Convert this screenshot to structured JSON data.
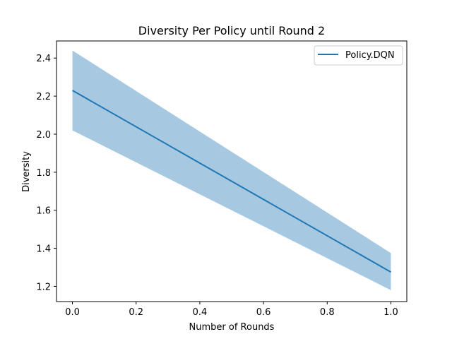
{
  "chart_data": {
    "type": "line",
    "title": "Diversity Per Policy until Round 2",
    "xlabel": "Number of Rounds",
    "ylabel": "Diversity",
    "xlim": [
      -0.05,
      1.05
    ],
    "ylim": [
      1.12,
      2.49
    ],
    "xticks": [
      0.0,
      0.2,
      0.4,
      0.6,
      0.8,
      1.0
    ],
    "xtick_labels": [
      "0.0",
      "0.2",
      "0.4",
      "0.6",
      "0.8",
      "1.0"
    ],
    "yticks": [
      1.2,
      1.4,
      1.6,
      1.8,
      2.0,
      2.2,
      2.4
    ],
    "ytick_labels": [
      "1.2",
      "1.4",
      "1.6",
      "1.8",
      "2.0",
      "2.2",
      "2.4"
    ],
    "grid": false,
    "legend_position": "top-right",
    "series": [
      {
        "name": "Policy.DQN",
        "color": "#1f77b4",
        "band_color": "#a6c8e1",
        "x": [
          0.0,
          1.0
        ],
        "y": [
          2.23,
          1.275
        ],
        "y_lower": [
          2.02,
          1.18
        ],
        "y_upper": [
          2.44,
          1.375
        ]
      }
    ]
  }
}
